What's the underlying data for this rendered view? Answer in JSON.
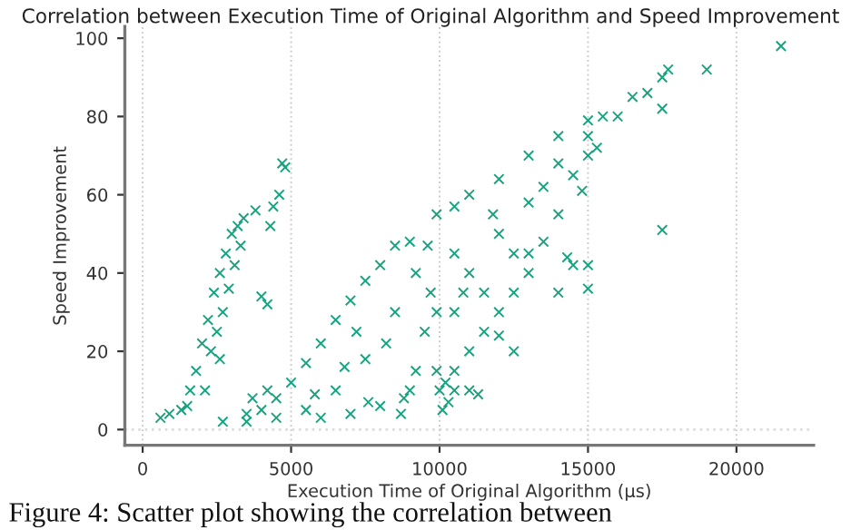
{
  "chart_data": {
    "type": "scatter",
    "title": "Correlation between Execution Time of Original Algorithm and Speed Improvement",
    "xlabel": "Execution Time of Original Algorithm (µs)",
    "ylabel": "Speed Improvement",
    "annotations": [
      "Figure 4: Scatter plot showing the correlation between"
    ],
    "marker": "cross",
    "grid": "x",
    "xlim": [
      -600,
      22600
    ],
    "ylim": [
      -4,
      103
    ],
    "xticks": [
      0,
      5000,
      10000,
      15000,
      20000
    ],
    "yticks": [
      0,
      20,
      40,
      60,
      80,
      100
    ],
    "ref_lines": [
      {
        "axis": "y",
        "value": 0,
        "color": "#dddddd",
        "line_style": "dotted"
      }
    ],
    "series": [
      {
        "color": "#16a37f",
        "x": [
          600,
          900,
          1300,
          1600,
          1800,
          2000,
          2200,
          2400,
          2600,
          2800,
          3000,
          3200,
          3400,
          2300,
          2500,
          2700,
          2900,
          1500,
          3800,
          4200,
          4000,
          4700,
          4800,
          4600,
          4300,
          4400,
          3100,
          3300,
          2100,
          2600,
          2700,
          3500,
          4500,
          5500,
          6500,
          7500,
          8500,
          9200,
          9600,
          9000,
          8500,
          8000,
          7500,
          7000,
          6500,
          6000,
          5500,
          5000,
          4500,
          4000,
          3500,
          9700,
          9500,
          9200,
          8800,
          8000,
          7000,
          6000,
          7600,
          8700,
          9000,
          4200,
          3700,
          7200,
          8200,
          6800,
          5800,
          9900,
          9900,
          9900,
          10500,
          11000,
          12000,
          13000,
          14000,
          15000,
          15500,
          15000,
          15000,
          14500,
          14000,
          13500,
          13000,
          12500,
          12000,
          11500,
          11000,
          10500,
          10200,
          11000,
          12000,
          13000,
          14000,
          12500,
          11500,
          10500,
          10500,
          13500,
          14500,
          15000,
          14300,
          12500,
          12000,
          10000,
          10500,
          11000,
          11300,
          10300,
          10100,
          15300,
          14800,
          16000,
          16500,
          17000,
          17500,
          17700,
          17500,
          19000,
          21500,
          17500,
          15000,
          13000,
          14000,
          10800,
          11800
        ],
        "values": [
          3,
          4,
          5,
          10,
          15,
          22,
          28,
          35,
          40,
          45,
          50,
          52,
          54,
          20,
          25,
          30,
          36,
          6,
          56,
          32,
          34,
          68,
          67,
          60,
          52,
          57,
          42,
          47,
          10,
          18,
          2,
          2,
          3,
          5,
          10,
          18,
          30,
          40,
          47,
          48,
          47,
          42,
          38,
          33,
          28,
          22,
          17,
          12,
          8,
          5,
          4,
          35,
          25,
          15,
          8,
          6,
          4,
          3,
          7,
          4,
          10,
          10,
          8,
          25,
          22,
          16,
          9,
          15,
          30,
          55,
          57,
          60,
          64,
          70,
          75,
          79,
          80,
          75,
          70,
          65,
          55,
          48,
          40,
          35,
          30,
          25,
          20,
          15,
          12,
          40,
          50,
          58,
          68,
          45,
          35,
          30,
          45,
          62,
          42,
          42,
          44,
          20,
          24,
          10,
          10,
          10,
          9,
          7,
          5,
          72,
          61,
          80,
          85,
          86,
          82,
          92,
          90,
          92,
          98,
          51,
          36,
          45,
          35,
          35,
          55
        ]
      }
    ]
  }
}
